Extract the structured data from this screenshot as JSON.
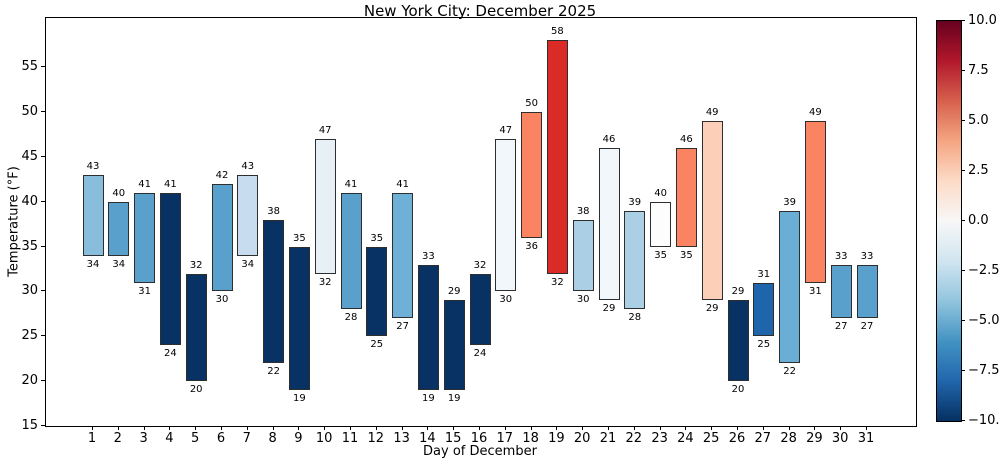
{
  "chart_data": {
    "type": "bar",
    "title": "New York City: December 2025",
    "xlabel": "Day of December",
    "ylabel": "Temperature (°F)",
    "ylim": [
      15,
      60.5
    ],
    "yticks": [
      15,
      20,
      25,
      30,
      35,
      40,
      45,
      50,
      55
    ],
    "grid": false,
    "bars": [
      {
        "day": 1,
        "low": 34,
        "high": 43,
        "color": "#88bedc"
      },
      {
        "day": 2,
        "low": 34,
        "high": 40,
        "color": "#5aa0cd"
      },
      {
        "day": 3,
        "low": 31,
        "high": 41,
        "color": "#5aa0cd"
      },
      {
        "day": 4,
        "low": 24,
        "high": 41,
        "color": "#083264"
      },
      {
        "day": 5,
        "low": 20,
        "high": 32,
        "color": "#083264"
      },
      {
        "day": 6,
        "low": 30,
        "high": 42,
        "color": "#5aa0cd"
      },
      {
        "day": 7,
        "low": 34,
        "high": 43,
        "color": "#c7dcee"
      },
      {
        "day": 8,
        "low": 22,
        "high": 38,
        "color": "#083264"
      },
      {
        "day": 9,
        "low": 19,
        "high": 35,
        "color": "#083264"
      },
      {
        "day": 10,
        "low": 32,
        "high": 47,
        "color": "#e8f0f7"
      },
      {
        "day": 11,
        "low": 28,
        "high": 41,
        "color": "#5aa0cd"
      },
      {
        "day": 12,
        "low": 25,
        "high": 35,
        "color": "#083264"
      },
      {
        "day": 13,
        "low": 27,
        "high": 41,
        "color": "#6fb0d7"
      },
      {
        "day": 14,
        "low": 19,
        "high": 33,
        "color": "#083264"
      },
      {
        "day": 15,
        "low": 19,
        "high": 29,
        "color": "#083264"
      },
      {
        "day": 16,
        "low": 24,
        "high": 32,
        "color": "#083264"
      },
      {
        "day": 17,
        "low": 30,
        "high": 47,
        "color": "#f2f7fb"
      },
      {
        "day": 18,
        "low": 36,
        "high": 50,
        "color": "#fa8462"
      },
      {
        "day": 19,
        "low": 32,
        "high": 58,
        "color": "#da2b27"
      },
      {
        "day": 20,
        "low": 30,
        "high": 38,
        "color": "#abd0e5"
      },
      {
        "day": 21,
        "low": 29,
        "high": 46,
        "color": "#f2f7fb"
      },
      {
        "day": 22,
        "low": 28,
        "high": 39,
        "color": "#abd0e5"
      },
      {
        "day": 23,
        "low": 35,
        "high": 40,
        "color": "#fdfdfd"
      },
      {
        "day": 24,
        "low": 35,
        "high": 46,
        "color": "#fa8462"
      },
      {
        "day": 25,
        "low": 29,
        "high": 49,
        "color": "#fccfb8"
      },
      {
        "day": 26,
        "low": 20,
        "high": 29,
        "color": "#083264"
      },
      {
        "day": 27,
        "low": 25,
        "high": 31,
        "color": "#1f65ac"
      },
      {
        "day": 28,
        "low": 22,
        "high": 39,
        "color": "#6aadd5"
      },
      {
        "day": 29,
        "low": 31,
        "high": 49,
        "color": "#fa8462"
      },
      {
        "day": 30,
        "low": 27,
        "high": 33,
        "color": "#5aa0cd"
      },
      {
        "day": 31,
        "low": 27,
        "high": 33,
        "color": "#5aa0cd"
      }
    ],
    "colorbar": {
      "min": -10.0,
      "max": 10.0,
      "tick_values": [
        10.0,
        7.5,
        5.0,
        2.5,
        0.0,
        -2.5,
        -5.0,
        -7.5,
        -10.0
      ],
      "tick_labels": [
        "10.0",
        "7.5",
        "5.0",
        "2.5",
        "0.0",
        "−2.5",
        "−5.0",
        "−7.5",
        "−10.0"
      ],
      "gradient_top_to_bottom": [
        "#67001f",
        "#b2182b",
        "#d6604d",
        "#f4a582",
        "#fddbc7",
        "#f7f7f7",
        "#d1e5f0",
        "#92c5de",
        "#4393c3",
        "#2166ac",
        "#053061"
      ]
    }
  }
}
